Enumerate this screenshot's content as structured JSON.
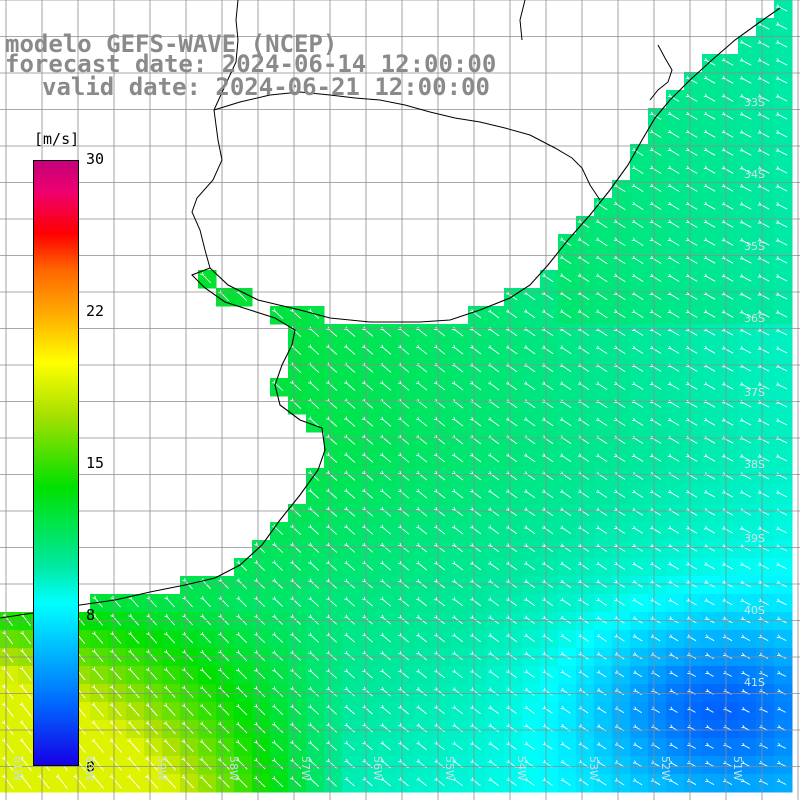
{
  "header": {
    "line1": "modelo GEFS-WAVE (NCEP)",
    "line2": "forecast date: 2024-06-14 12:00:00",
    "line3": "valid date: 2024-06-21 12:00:00"
  },
  "colorbar": {
    "unit": "[m/s]",
    "ticks": [
      "30",
      "22",
      "15",
      "8",
      "0"
    ],
    "range": [
      0,
      30
    ]
  },
  "lat_labels": [
    "33S",
    "34S",
    "35S",
    "36S",
    "37S",
    "38S",
    "39S",
    "40S",
    "41S"
  ],
  "lon_labels": [
    "61W",
    "60W",
    "59W",
    "58W",
    "57W",
    "56W",
    "55W",
    "54W",
    "53W",
    "52W",
    "51W"
  ],
  "colors": {
    "land": "#ffffff",
    "coastline": "#000000",
    "gridline": "#8c8c8c",
    "arrow": "#ffffff",
    "title_text": "#8a8a8a"
  }
}
